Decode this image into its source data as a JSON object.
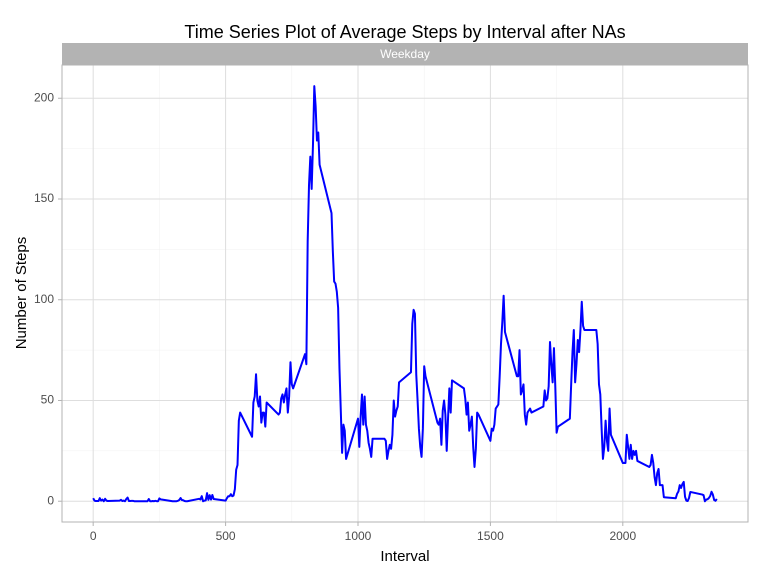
{
  "chart_data": {
    "type": "line",
    "title": "Time Series Plot of Average Steps by Interval after NAs",
    "panel_label": "Weekday",
    "x_label": "Interval",
    "y_label": "Number of Steps",
    "color": "#0000ff",
    "xlim": [
      -117.75,
      2472.75
    ],
    "xticks": [
      0,
      500,
      1000,
      1500,
      2000
    ],
    "ylim": [
      -10.31,
      216.5
    ],
    "yticks": [
      0,
      50,
      100,
      150,
      200
    ],
    "grid": true,
    "x": [
      0,
      5,
      10,
      15,
      20,
      25,
      30,
      35,
      40,
      45,
      50,
      55,
      100,
      105,
      110,
      115,
      120,
      125,
      130,
      135,
      140,
      145,
      150,
      155,
      200,
      205,
      210,
      215,
      220,
      225,
      230,
      235,
      240,
      245,
      250,
      255,
      300,
      305,
      310,
      315,
      320,
      325,
      330,
      335,
      340,
      345,
      350,
      355,
      400,
      405,
      410,
      415,
      420,
      425,
      430,
      435,
      440,
      445,
      450,
      455,
      500,
      505,
      510,
      515,
      520,
      525,
      530,
      535,
      540,
      545,
      550,
      555,
      600,
      605,
      610,
      615,
      620,
      625,
      630,
      635,
      640,
      645,
      650,
      655,
      700,
      705,
      710,
      715,
      720,
      725,
      730,
      735,
      740,
      745,
      750,
      755,
      800,
      805,
      810,
      815,
      820,
      825,
      830,
      835,
      840,
      845,
      850,
      855,
      900,
      905,
      910,
      915,
      920,
      925,
      930,
      935,
      940,
      945,
      950,
      955,
      1000,
      1005,
      1010,
      1015,
      1020,
      1025,
      1030,
      1035,
      1040,
      1045,
      1050,
      1055,
      1100,
      1105,
      1110,
      1115,
      1120,
      1125,
      1130,
      1135,
      1140,
      1145,
      1150,
      1155,
      1200,
      1205,
      1210,
      1215,
      1220,
      1225,
      1230,
      1235,
      1240,
      1245,
      1250,
      1255,
      1300,
      1305,
      1310,
      1315,
      1320,
      1325,
      1330,
      1335,
      1340,
      1345,
      1350,
      1355,
      1400,
      1405,
      1410,
      1415,
      1420,
      1425,
      1430,
      1435,
      1440,
      1445,
      1450,
      1455,
      1500,
      1505,
      1510,
      1515,
      1520,
      1525,
      1530,
      1535,
      1540,
      1545,
      1550,
      1555,
      1600,
      1605,
      1610,
      1615,
      1620,
      1625,
      1630,
      1635,
      1640,
      1645,
      1650,
      1655,
      1700,
      1705,
      1710,
      1715,
      1720,
      1725,
      1730,
      1735,
      1740,
      1745,
      1750,
      1755,
      1800,
      1805,
      1810,
      1815,
      1820,
      1825,
      1830,
      1835,
      1840,
      1845,
      1850,
      1855,
      1900,
      1905,
      1910,
      1915,
      1920,
      1925,
      1930,
      1935,
      1940,
      1945,
      1950,
      1955,
      2000,
      2005,
      2010,
      2015,
      2020,
      2025,
      2030,
      2035,
      2040,
      2045,
      2050,
      2055,
      2100,
      2105,
      2110,
      2115,
      2120,
      2125,
      2130,
      2135,
      2140,
      2145,
      2150,
      2155,
      2200,
      2205,
      2210,
      2215,
      2220,
      2225,
      2230,
      2235,
      2240,
      2245,
      2250,
      2255,
      2300,
      2305,
      2310,
      2315,
      2320,
      2325,
      2330,
      2335,
      2340,
      2345,
      2350,
      2355
    ],
    "values": [
      1.5,
      0.3,
      0.1,
      0.1,
      0.1,
      1.5,
      0.3,
      0.8,
      0,
      1.2,
      0.3,
      0.1,
      0.3,
      0.7,
      0.1,
      0.3,
      0,
      1.1,
      1.8,
      0.1,
      0.1,
      0.2,
      0.2,
      0,
      0,
      0,
      1.1,
      0,
      0,
      0.1,
      0,
      0.2,
      0,
      0,
      1.4,
      0.9,
      0,
      0,
      0,
      0,
      0.2,
      0.6,
      1.6,
      0.6,
      0.5,
      0.1,
      0,
      0,
      1.2,
      0.9,
      2.5,
      0,
      0.3,
      0.4,
      4,
      0.7,
      3,
      0.8,
      3.1,
      1.1,
      0.3,
      1.5,
      2.5,
      2.5,
      3.5,
      2.5,
      2.8,
      6,
      15.6,
      18,
      40,
      44,
      32,
      49,
      52,
      63,
      50,
      47,
      52,
      39,
      44,
      44,
      37,
      49,
      43,
      44,
      51,
      53,
      49,
      53,
      56,
      44,
      52,
      69,
      58,
      56,
      73,
      68,
      129,
      157,
      171,
      155,
      177,
      206,
      196,
      179,
      183,
      167,
      143,
      124,
      109,
      108,
      104,
      96,
      66,
      45,
      24,
      38,
      35,
      21,
      41,
      27,
      42,
      53,
      38,
      52,
      38,
      35,
      29,
      26,
      22,
      31,
      31,
      30,
      21,
      25,
      28,
      26,
      33,
      50,
      42,
      45,
      47,
      59,
      64,
      88,
      95,
      93,
      63,
      50,
      36,
      27,
      22,
      36,
      67,
      62,
      39,
      38,
      41,
      28,
      45,
      50,
      43,
      25,
      41,
      56,
      44,
      60,
      56,
      51,
      43,
      49,
      35,
      38,
      42,
      27,
      17,
      26,
      44,
      43,
      30,
      36,
      35,
      38,
      46,
      47,
      48,
      62,
      78,
      89,
      102,
      84,
      62,
      62,
      75,
      53,
      55,
      58,
      43,
      38,
      44,
      45,
      46,
      44,
      47,
      55,
      50,
      51,
      57,
      79,
      68,
      59,
      76,
      57,
      34,
      37,
      41,
      58,
      74,
      85,
      59,
      68,
      80,
      74,
      85,
      99,
      87,
      85,
      85,
      78,
      58,
      53,
      36,
      21,
      27,
      40,
      30,
      25,
      46,
      33,
      19,
      19,
      19,
      33,
      27,
      21,
      28,
      21,
      25,
      23,
      25,
      20,
      17,
      18,
      23,
      19,
      12,
      8,
      14,
      16,
      8,
      8,
      8,
      2,
      1.5,
      3.7,
      4.8,
      8,
      6.6,
      8.5,
      9.6,
      2.2,
      0.3,
      0.1,
      1.6,
      4.6,
      3.3,
      3,
      0,
      0.8,
      1,
      1.6,
      2.6,
      4.7,
      3.3,
      0.6,
      0.2,
      1.1
    ]
  }
}
